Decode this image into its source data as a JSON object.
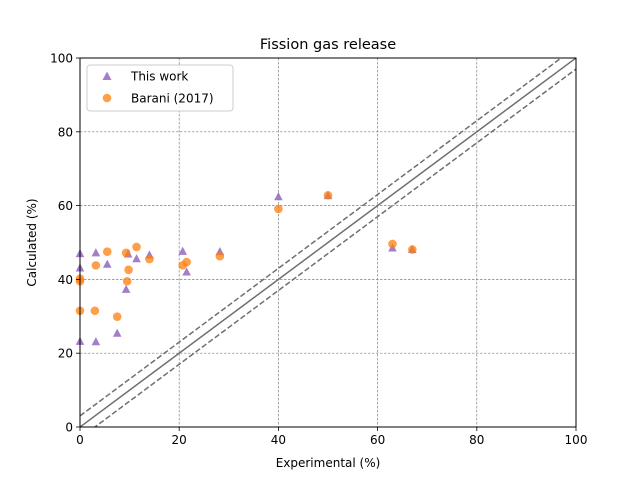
{
  "chart_data": {
    "type": "scatter",
    "title": "Fission gas release",
    "xlabel": "Experimental (%)",
    "ylabel": "Calculated (%)",
    "xlim": [
      0,
      100
    ],
    "ylim": [
      0,
      100
    ],
    "xticks": [
      0,
      20,
      40,
      60,
      80,
      100
    ],
    "yticks": [
      0,
      20,
      40,
      60,
      80,
      100
    ],
    "grid": true,
    "legend_position": "top-left",
    "reference_lines": {
      "identity": "y = x",
      "band": [
        -3,
        3
      ]
    },
    "series": [
      {
        "name": "This work",
        "marker": "triangle",
        "color": "#9467bd",
        "x": [
          0.0,
          0.0,
          0.0,
          3.2,
          3.2,
          5.5,
          7.5,
          9.3,
          9.7,
          11.4,
          14.0,
          20.7,
          21.5,
          28.2,
          40.0,
          50.0,
          63.0,
          67.0
        ],
        "y": [
          23.3,
          43.2,
          47.1,
          23.2,
          47.3,
          44.2,
          25.5,
          37.4,
          47.0,
          45.7,
          46.7,
          47.7,
          42.1,
          47.6,
          62.5,
          62.8,
          48.6,
          48.2
        ]
      },
      {
        "name": "Barani (2017)",
        "marker": "circle",
        "color": "#ff7f0e",
        "x": [
          0.0,
          0.0,
          0.0,
          3.0,
          3.2,
          5.5,
          7.5,
          9.3,
          9.5,
          9.8,
          11.4,
          14.0,
          20.7,
          21.5,
          28.2,
          40.0,
          50.0,
          63.0,
          67.0
        ],
        "y": [
          31.5,
          39.5,
          40.2,
          31.5,
          43.8,
          47.5,
          29.9,
          47.2,
          39.5,
          42.6,
          48.8,
          45.5,
          43.8,
          44.7,
          46.3,
          59.1,
          62.8,
          49.6,
          48.1
        ]
      }
    ]
  }
}
